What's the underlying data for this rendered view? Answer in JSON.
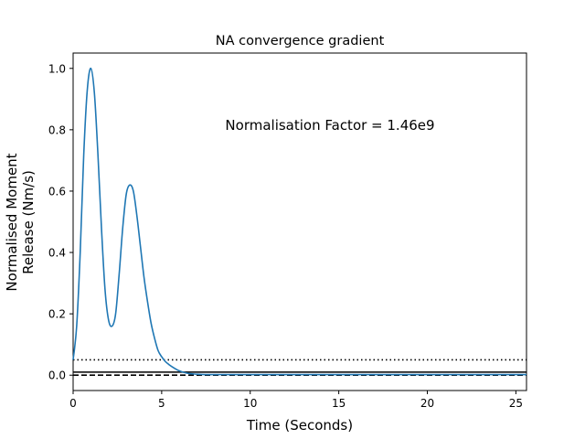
{
  "chart_data": {
    "type": "line",
    "title": "NA convergence gradient",
    "xlabel": "Time (Seconds)",
    "ylabel_lines": [
      "Normalised Moment",
      "Release (Nm/s)"
    ],
    "annotation": "Normalisation Factor = 1.46e9",
    "xlim": [
      0,
      25.6
    ],
    "ylim": [
      -0.05,
      1.05
    ],
    "x_ticks": [
      0,
      5,
      10,
      15,
      20,
      25
    ],
    "x_tick_labels": [
      "0",
      "5",
      "10",
      "15",
      "20",
      "25"
    ],
    "y_ticks": [
      0.0,
      0.2,
      0.4,
      0.6,
      0.8,
      1.0
    ],
    "y_tick_labels": [
      "0.0",
      "0.2",
      "0.4",
      "0.6",
      "0.8",
      "1.0"
    ],
    "grid": false,
    "series": [
      {
        "color": "#1f77b4",
        "x": [
          0,
          0.2,
          0.4,
          0.6,
          0.8,
          1.0,
          1.2,
          1.4,
          1.6,
          1.8,
          2.0,
          2.2,
          2.4,
          2.6,
          2.8,
          3.0,
          3.2,
          3.4,
          3.6,
          3.8,
          4.0,
          4.2,
          4.4,
          4.6,
          4.8,
          5.0,
          5.2,
          5.4,
          5.6,
          5.8,
          6.0,
          6.2,
          6.4,
          6.6,
          6.8,
          7.0,
          7.5,
          8.0,
          10,
          15,
          20,
          25.6
        ],
        "y": [
          0.05,
          0.16,
          0.4,
          0.72,
          0.93,
          1.0,
          0.92,
          0.72,
          0.48,
          0.28,
          0.18,
          0.16,
          0.2,
          0.33,
          0.48,
          0.59,
          0.62,
          0.6,
          0.52,
          0.42,
          0.32,
          0.24,
          0.17,
          0.12,
          0.08,
          0.06,
          0.045,
          0.035,
          0.027,
          0.02,
          0.014,
          0.01,
          0.007,
          0.005,
          0.004,
          0.003,
          0.002,
          0.002,
          0.002,
          0.002,
          0.002,
          0.002
        ]
      }
    ],
    "reference_lines": [
      {
        "y": 0.05,
        "style": "dotted",
        "color": "#000000"
      },
      {
        "y": 0.01,
        "style": "solid",
        "color": "#000000"
      },
      {
        "y": 0.0,
        "style": "dashed",
        "color": "#000000"
      }
    ]
  }
}
